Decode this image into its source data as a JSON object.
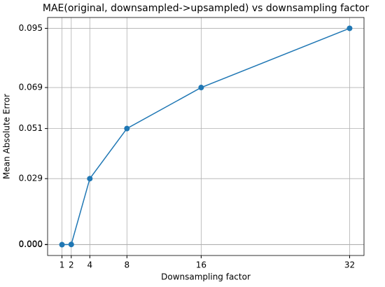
{
  "chart_data": {
    "type": "line",
    "title": "MAE(original, downsampled->upsampled) vs downsampling factor",
    "x_label": "Downsampling factor",
    "y_label": "Mean Absolute Error",
    "x": [
      1,
      2,
      4,
      8,
      16,
      32
    ],
    "series": [
      {
        "name": "MAE",
        "color": "#1f77b4",
        "values": [
          0,
          0.0001,
          0.029,
          0.051,
          0.069,
          0.095
        ]
      }
    ],
    "xlim": [
      -0.55,
      33.55
    ],
    "ylim": [
      -0.00475,
      0.09975
    ],
    "xticks": [
      1,
      2,
      4,
      8,
      16,
      32
    ],
    "yticks": [
      {
        "value": 0,
        "label": "0.000"
      },
      {
        "value": 0.0001,
        "label": "0.000"
      },
      0.029,
      0.051,
      0.069,
      0.095
    ],
    "grid": true
  }
}
